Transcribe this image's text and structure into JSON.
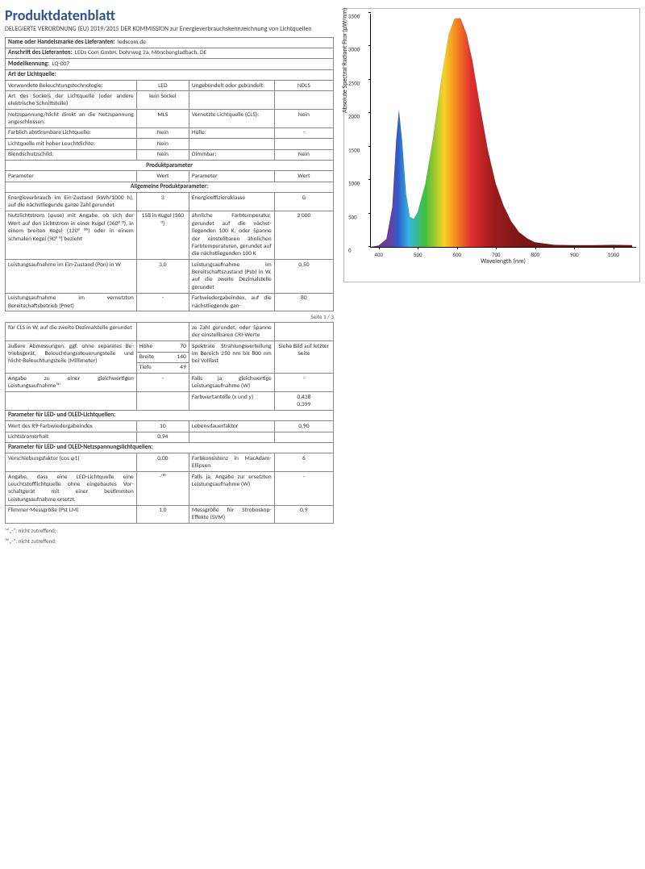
{
  "title": "Produktdatenblatt",
  "subtitle": "DELEGIERTE VERORDNUNG (EU) 2019/2015 DER KOMMISSION zur Energieverbrauchskennzeichnung von Lichtquellen",
  "supplier_name_label": "Name oder Handelsmarke des Lieferanten:",
  "supplier_name": "ledscom.de",
  "supplier_addr_label": "Anschrift des Lieferanten:",
  "supplier_addr": "LEDs Com GmbH, Dohrweg 2a, Mönchengladbach, DE",
  "model_label": "Modellkennung:",
  "model": "LQ-007",
  "art_header": "Art der Lichtquelle:",
  "rows_art": [
    {
      "a": "Verwendete Beleuchtungstech­nologie:",
      "b": "LED",
      "c": "Ungebündelt oder gebündelt:",
      "d": "NDLS"
    },
    {
      "a": "Art des Sockels der Lichtquelle (oder andere elektrische Schnittstelle)",
      "b": "kein Sockel",
      "c": "",
      "d": ""
    },
    {
      "a": "Netzspannung/Nicht direkt an die Netzspannung angeschlos­sen:",
      "b": "MLS",
      "c": "Vernetzte Lichtquel­le (CLS):",
      "d": "Nein"
    },
    {
      "a": "Farblich abstimmbare Licht­quelle:",
      "b": "Nein",
      "c": "Hülle:",
      "d": "-"
    },
    {
      "a": "Lichtquelle mit hoher Leucht­dichte:",
      "b": "Nein",
      "c": "",
      "d": ""
    },
    {
      "a": "Blendschutzschild:",
      "b": "Nein",
      "c": "Dimmbar:",
      "d": "Nein"
    }
  ],
  "prodparam_header": "Produktparameter",
  "col_param": "Parameter",
  "col_wert": "Wert",
  "allg_header": "Allgemeine Produktparameter:",
  "rows_allg": [
    {
      "a": "Energieverbrauch im Ein-Zu­stand (kWh/1000 h), auf die nächstliegende ganze Zahl ge­rundet",
      "b": "3",
      "c": "Energieeffizienzklas­se",
      "d": "G"
    },
    {
      "a": "Nutzlichtstrom (ɸuse) mit An­gabe, ob sich der Wert auf den Lichtstrom in einer Kugel (360° °), in einem breiten Kegel (120° °°) oder in einem schmalen Kegel (90° °) bezieht",
      "b": "158 in Ku­gel (360 °)",
      "c": "ähnliche Farbtem­peratur, gerundet auf die nächst­liegenden 100 K, oder Spanne der einstellbaren ähnli­chen Farbtempera­turen, gerundet auf die nächstliegenden 100 K",
      "d": "3 000"
    },
    {
      "a": "Leistungsaufnahme im Ein-Zu­stand (Pon) in W",
      "b": "3,0",
      "c": "Leistungsaufnahme im Bereitschaftszu­stand (Psb) in W, auf die zweite Dezimal­stelle gerundet",
      "d": "0,50"
    },
    {
      "a": "Leistungsaufnahme im vernetz­ten Bereitschaftsbetrieb (Pnet)",
      "b": "-",
      "c": "Farbwiedergabein­dex, auf die nächstliegende gan-",
      "d": "80"
    }
  ],
  "rows_allg2": [
    {
      "a": "für CLS in W, auf die zweite De­zimalstelle gerundet",
      "b": "",
      "c": "ze Zahl gerundet, oder Spanne der ein­stellbaren CRI-Wer­te",
      "d": ""
    }
  ],
  "dim_label": "äußere Ab­messungen, ggf. ohne se­parates Be­triebsgerät, Beleuchtungs­steuerungstei­le und Nicht-Beleuchtungs­teile (Millime­ter)",
  "dim_rows": [
    {
      "k": "Höhe",
      "v": "70"
    },
    {
      "k": "Breite",
      "v": "140"
    },
    {
      "k": "Tiefe",
      "v": "49"
    }
  ],
  "spectral_label": "Spektrale Strah­lungsverteilung im Bereich 250 nm bis 800 nm bei Volllast",
  "spectral_val": "Siehe Bild auf letzter Seite",
  "equiv_row": {
    "a": "Angabe zu einer gleichwertigen Leistungsaufnahme⁽ᵃ⁾",
    "b": "-",
    "c": "Falls ja, gleichwerti­ge Leistungsaufnah­me (W)",
    "d": "-"
  },
  "farbwert_row": {
    "c": "Farbwertanteile (x und y)",
    "d": "0,438\n0,399"
  },
  "led_header": "Parameter für LED- und OLED-Lichtquellen:",
  "rows_led": [
    {
      "a": "Wert des R9-Farbwiedergabein­dex",
      "b": "10",
      "c": "Lebensdauerfaktor",
      "d": "0,90"
    },
    {
      "a": "Lichtstromerhalt",
      "b": "0,94",
      "c": "",
      "d": ""
    }
  ],
  "netz_header": "Parameter für LED- und OLED-Netzspannungslichtquellen:",
  "rows_netz": [
    {
      "a": "Verschiebungsfaktor (cos ɸ1)",
      "b": "0,00",
      "c": "Farbkonsistenz in MacAdam-Ellipsen",
      "d": "6"
    },
    {
      "a": "Angabe, dass eine LED-Licht­quelle eine Leuchtstofflicht­quelle ohne eingebautes Vor­schaltgerät mit einer bestimm­ten Leistungsaufnahme ersetzt.",
      "b": "-⁽ᵇ⁾",
      "c": "Falls ja, Angabe zur ersetzten Leistungs­aufnahme (W)",
      "d": "-"
    },
    {
      "a": "Flimmer-Messgröße (Pst LM)",
      "b": "1,0",
      "c": "Messgröße für Stro­boskop-Effekte (SVM)",
      "d": "0,9"
    }
  ],
  "footnote_a": "⁽ᵃ⁾„-\": nicht zutreffend;",
  "footnote_b": "⁽ᵇ⁾„-\": nicht zutreffend;",
  "pagenum": "Seite 1 / 3",
  "chart": {
    "ylabel": "Absolute Spectral Radiant Flux (µW/nm)",
    "xlabel": "Wavelength (nm)",
    "xlim": [
      380,
      1060
    ],
    "ylim": [
      0,
      3500
    ],
    "yticks": [
      0,
      500,
      1000,
      1500,
      2000,
      2500,
      3000,
      3500
    ],
    "xticks": [
      400,
      500,
      600,
      700,
      800,
      900,
      1000
    ],
    "colors": {
      "violet": "#6b3fa0",
      "blue": "#2e5cc8",
      "cyan": "#37b6e0",
      "green": "#3fbf3f",
      "yellow": "#f5d326",
      "orange": "#f58b1f",
      "red": "#e03030",
      "darkred": "#9b1c1c"
    },
    "curve": [
      [
        380,
        0
      ],
      [
        400,
        20
      ],
      [
        420,
        120
      ],
      [
        435,
        600
      ],
      [
        445,
        1600
      ],
      [
        452,
        2050
      ],
      [
        460,
        1600
      ],
      [
        470,
        800
      ],
      [
        480,
        450
      ],
      [
        490,
        420
      ],
      [
        500,
        520
      ],
      [
        520,
        950
      ],
      [
        540,
        1650
      ],
      [
        560,
        2500
      ],
      [
        580,
        3200
      ],
      [
        595,
        3430
      ],
      [
        610,
        3430
      ],
      [
        625,
        3200
      ],
      [
        640,
        2800
      ],
      [
        660,
        2100
      ],
      [
        680,
        1450
      ],
      [
        700,
        950
      ],
      [
        720,
        620
      ],
      [
        740,
        380
      ],
      [
        760,
        220
      ],
      [
        780,
        130
      ],
      [
        800,
        70
      ],
      [
        850,
        30
      ],
      [
        900,
        25
      ],
      [
        950,
        25
      ],
      [
        1000,
        30
      ],
      [
        1050,
        25
      ]
    ]
  }
}
